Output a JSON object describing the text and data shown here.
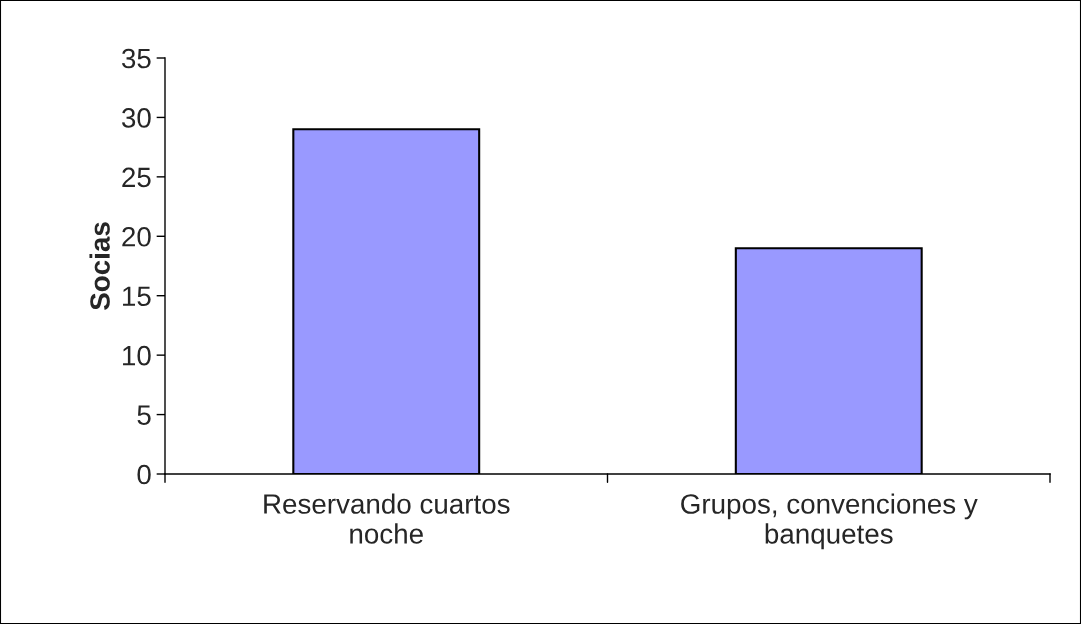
{
  "chart_data": {
    "type": "bar",
    "ylabel": "Socias",
    "categories": [
      "Reservando cuartos\nnoche",
      "Grupos, convenciones y\nbanquetes"
    ],
    "values": [
      29,
      19
    ],
    "color": "#9999ff",
    "ylim": [
      0,
      35
    ],
    "yticks": [
      0,
      5,
      10,
      15,
      20,
      25,
      30,
      35
    ],
    "grid": false
  }
}
